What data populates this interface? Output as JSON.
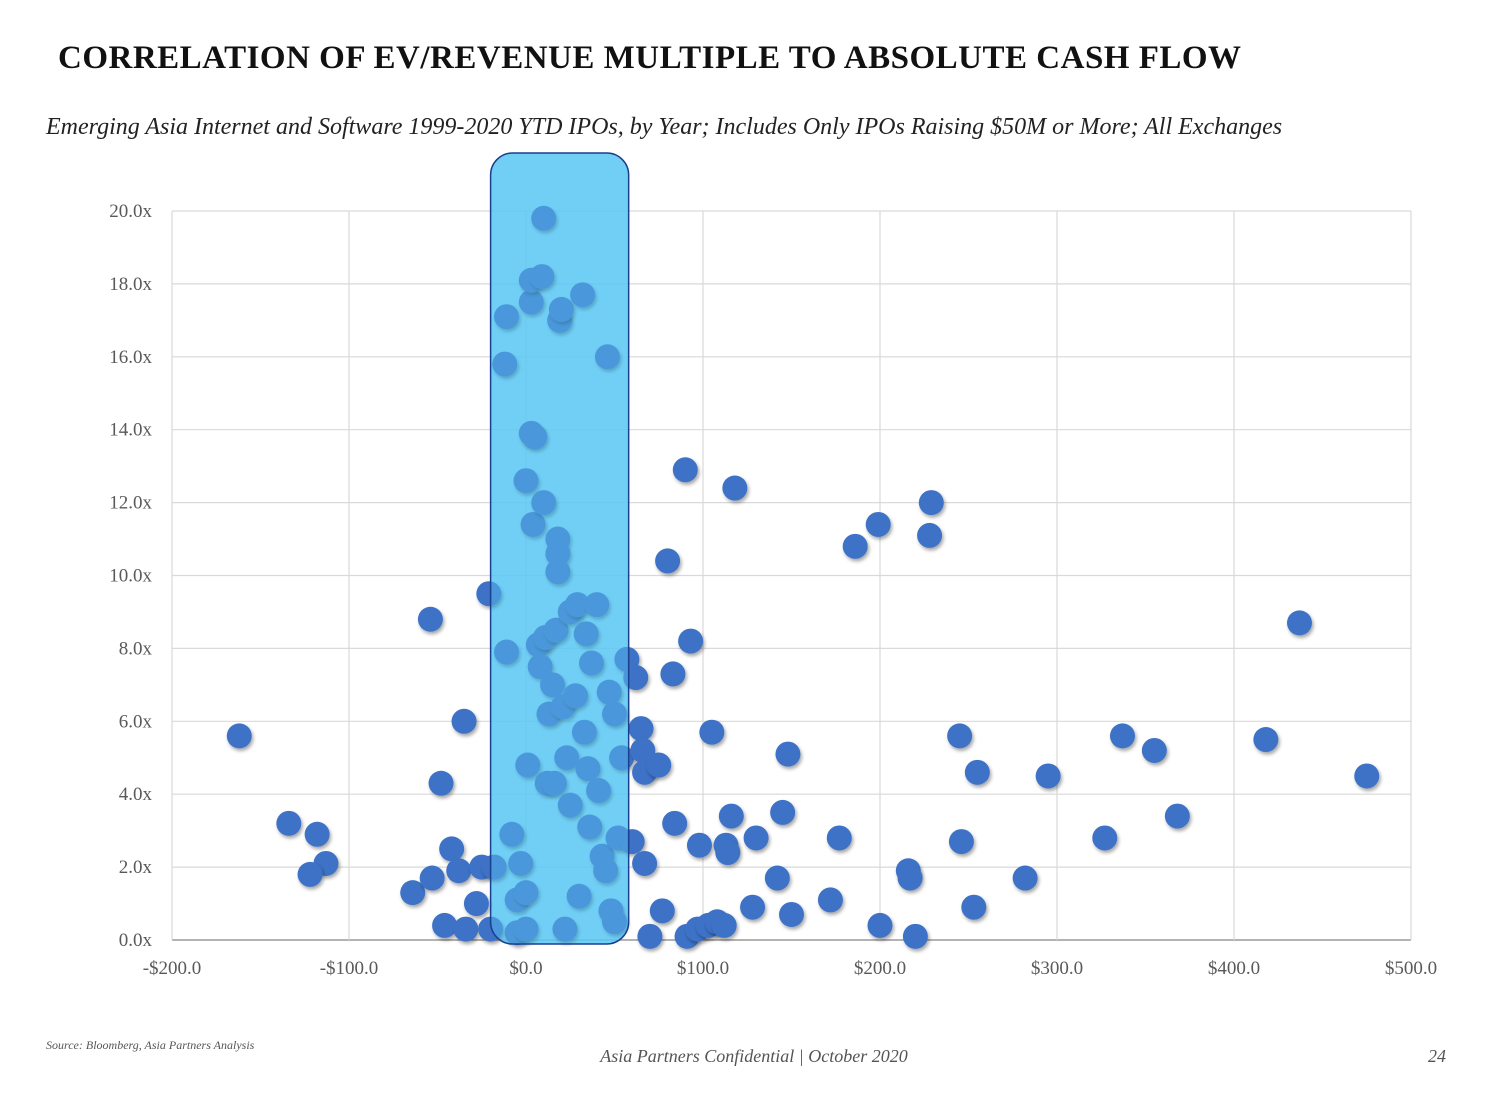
{
  "page": {
    "title": "CORRELATION OF EV/REVENUE MULTIPLE TO ABSOLUTE CASH FLOW",
    "subtitle": "Emerging Asia Internet and Software 1999-2020 YTD IPOs, by Year; Includes Only IPOs Raising $50M or More; All Exchanges",
    "source": "Source: Bloomberg, Asia Partners Analysis",
    "footer": "Asia Partners Confidential | October 2020",
    "page_number": "24"
  },
  "colors": {
    "point": "#3d72c7",
    "highlight_fill": "#5ac8f5",
    "highlight_stroke": "#1a3f8f",
    "grid": "#d9d9d9"
  },
  "chart_data": {
    "type": "scatter",
    "xlabel": "",
    "ylabel": "",
    "xlim": [
      -200,
      500
    ],
    "ylim": [
      0,
      20
    ],
    "x_ticks": [
      -200,
      -100,
      0,
      100,
      200,
      300,
      400,
      500
    ],
    "y_ticks": [
      0,
      2,
      4,
      6,
      8,
      10,
      12,
      14,
      16,
      18,
      20
    ],
    "x_tick_labels": [
      "-$200.0",
      "-$100.0",
      "$0.0",
      "$100.0",
      "$200.0",
      "$300.0",
      "$400.0",
      "$500.0"
    ],
    "y_tick_labels": [
      "0.0x",
      "2.0x",
      "4.0x",
      "6.0x",
      "8.0x",
      "10.0x",
      "12.0x",
      "14.0x",
      "16.0x",
      "18.0x",
      "20.0x"
    ],
    "highlight_range_x": [
      -20,
      58
    ],
    "grid": true,
    "points": [
      [
        -162,
        5.6
      ],
      [
        -134,
        3.2
      ],
      [
        -118,
        2.9
      ],
      [
        -113,
        2.1
      ],
      [
        -122,
        1.8
      ],
      [
        -64,
        1.3
      ],
      [
        -53,
        1.7
      ],
      [
        -54,
        8.8
      ],
      [
        -48,
        4.3
      ],
      [
        -46,
        0.4
      ],
      [
        -42,
        2.5
      ],
      [
        -38,
        1.9
      ],
      [
        -34,
        0.3
      ],
      [
        -35,
        6.0
      ],
      [
        -28,
        1.0
      ],
      [
        -25,
        2.0
      ],
      [
        -20,
        0.3
      ],
      [
        -21,
        9.5
      ],
      [
        -18,
        2.0
      ],
      [
        -12,
        15.8
      ],
      [
        -11,
        17.1
      ],
      [
        -11,
        7.9
      ],
      [
        -5,
        0.2
      ],
      [
        -5,
        1.1
      ],
      [
        -8,
        2.9
      ],
      [
        -3,
        2.1
      ],
      [
        0,
        1.3
      ],
      [
        0,
        0.3
      ],
      [
        1,
        4.8
      ],
      [
        0,
        12.6
      ],
      [
        3,
        17.5
      ],
      [
        3,
        18.1
      ],
      [
        3,
        13.9
      ],
      [
        4,
        11.4
      ],
      [
        5,
        13.8
      ],
      [
        7,
        8.1
      ],
      [
        8,
        7.5
      ],
      [
        9,
        18.2
      ],
      [
        10,
        19.8
      ],
      [
        10,
        12.0
      ],
      [
        11,
        8.3
      ],
      [
        12,
        4.3
      ],
      [
        13,
        6.2
      ],
      [
        15,
        7.0
      ],
      [
        16,
        4.3
      ],
      [
        17,
        8.5
      ],
      [
        18,
        11.0
      ],
      [
        18,
        10.6
      ],
      [
        18,
        10.1
      ],
      [
        19,
        17.0
      ],
      [
        20,
        17.3
      ],
      [
        21,
        6.4
      ],
      [
        22,
        0.3
      ],
      [
        23,
        5.0
      ],
      [
        25,
        3.7
      ],
      [
        25,
        9.0
      ],
      [
        28,
        6.7
      ],
      [
        29,
        9.2
      ],
      [
        30,
        1.2
      ],
      [
        32,
        17.7
      ],
      [
        33,
        5.7
      ],
      [
        34,
        8.4
      ],
      [
        35,
        4.7
      ],
      [
        36,
        3.1
      ],
      [
        37,
        7.6
      ],
      [
        40,
        9.2
      ],
      [
        41,
        4.1
      ],
      [
        43,
        2.3
      ],
      [
        45,
        1.9
      ],
      [
        46,
        16.0
      ],
      [
        47,
        6.8
      ],
      [
        48,
        0.8
      ],
      [
        50,
        6.2
      ],
      [
        50,
        0.5
      ],
      [
        52,
        2.8
      ],
      [
        54,
        5.0
      ],
      [
        57,
        7.7
      ],
      [
        60,
        2.7
      ],
      [
        62,
        7.2
      ],
      [
        65,
        5.8
      ],
      [
        66,
        5.2
      ],
      [
        67,
        2.1
      ],
      [
        67,
        4.6
      ],
      [
        70,
        0.1
      ],
      [
        75,
        4.8
      ],
      [
        77,
        0.8
      ],
      [
        80,
        10.4
      ],
      [
        83,
        7.3
      ],
      [
        84,
        3.2
      ],
      [
        90,
        12.9
      ],
      [
        91,
        0.1
      ],
      [
        93,
        8.2
      ],
      [
        97,
        0.3
      ],
      [
        98,
        2.6
      ],
      [
        103,
        0.4
      ],
      [
        105,
        5.7
      ],
      [
        108,
        0.5
      ],
      [
        112,
        0.4
      ],
      [
        113,
        2.6
      ],
      [
        114,
        2.4
      ],
      [
        116,
        3.4
      ],
      [
        118,
        12.4
      ],
      [
        128,
        0.9
      ],
      [
        130,
        2.8
      ],
      [
        142,
        1.7
      ],
      [
        145,
        3.5
      ],
      [
        148,
        5.1
      ],
      [
        150,
        0.7
      ],
      [
        172,
        1.1
      ],
      [
        177,
        2.8
      ],
      [
        186,
        10.8
      ],
      [
        199,
        11.4
      ],
      [
        200,
        0.4
      ],
      [
        216,
        1.9
      ],
      [
        217,
        1.7
      ],
      [
        220,
        0.1
      ],
      [
        228,
        11.1
      ],
      [
        229,
        12.0
      ],
      [
        245,
        5.6
      ],
      [
        246,
        2.7
      ],
      [
        253,
        0.9
      ],
      [
        255,
        4.6
      ],
      [
        282,
        1.7
      ],
      [
        295,
        4.5
      ],
      [
        327,
        2.8
      ],
      [
        337,
        5.6
      ],
      [
        355,
        5.2
      ],
      [
        368,
        3.4
      ],
      [
        418,
        5.5
      ],
      [
        437,
        8.7
      ],
      [
        475,
        4.5
      ]
    ]
  }
}
